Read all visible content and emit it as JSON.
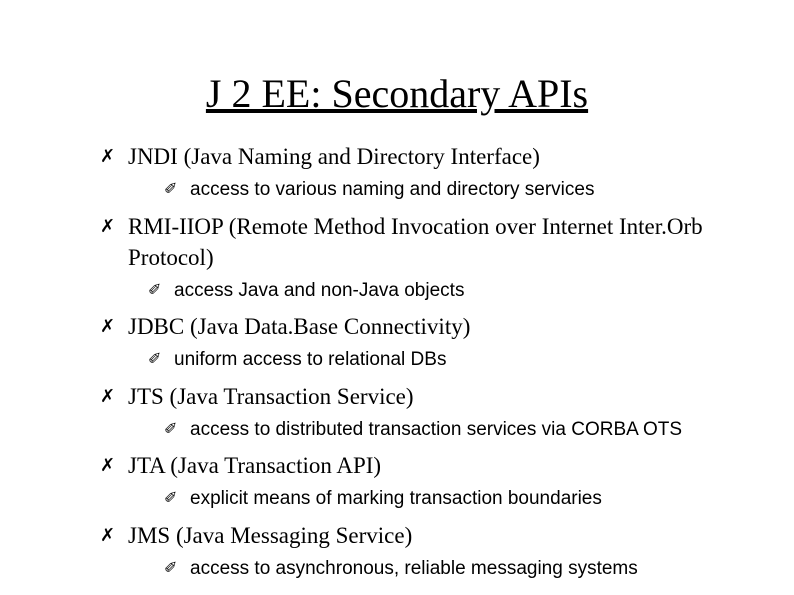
{
  "title": "J 2 EE: Secondary APIs",
  "bullets": {
    "lvl1_symbol": "✗",
    "lvl2_symbol": "✐"
  },
  "lvl1": [
    {
      "text": "JNDI (Java Naming and Directory Interface)",
      "sub_indent": "wide",
      "subs": [
        "access to various naming and directory services"
      ]
    },
    {
      "text": " RMI-IIOP (Remote Method Invocation over Internet Inter.Orb Protocol)",
      "sub_indent": "tight",
      "subs": [
        "access  Java and non-Java objects"
      ]
    },
    {
      "text": "JDBC (Java Data.Base Connectivity)",
      "sub_indent": "tight",
      "subs": [
        "uniform access to relational DBs"
      ]
    },
    {
      "text": "JTS (Java Transaction Service)",
      "sub_indent": "wide",
      "subs": [
        "access to distributed transaction services via CORBA OTS"
      ]
    },
    {
      "text": "JTA (Java Transaction API)",
      "sub_indent": "wide",
      "subs": [
        "explicit means of marking transaction boundaries"
      ]
    },
    {
      "text": "JMS (Java Messaging Service)",
      "sub_indent": "wide",
      "subs": [
        "access to asynchronous, reliable messaging systems"
      ]
    }
  ],
  "colors": {
    "background": "#ffffff",
    "text": "#000000"
  },
  "typography": {
    "title_font": "Times New Roman",
    "title_size_pt": 30,
    "body_font": "Times New Roman",
    "body_size_pt": 18,
    "sub_font": "Arial",
    "sub_size_pt": 15
  }
}
